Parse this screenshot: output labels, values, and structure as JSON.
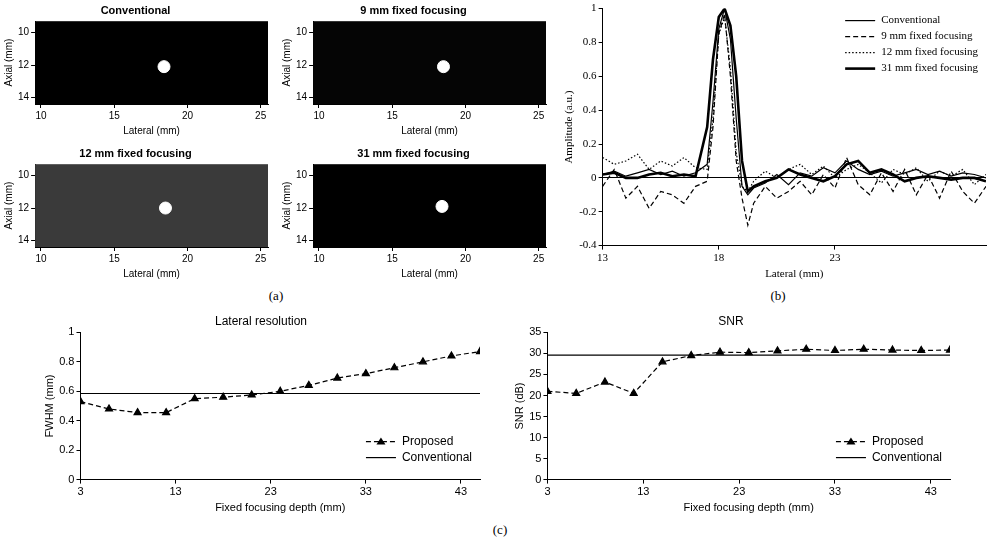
{
  "panel_labels": [
    "(a)",
    "(b)",
    "(c)"
  ],
  "chart_data": [
    {
      "type": "image",
      "title": "Conventional",
      "x_label": "Lateral (mm)",
      "y_label": "Axial (mm)",
      "xlim": [
        9.6,
        25.5
      ],
      "ylim": [
        14.4,
        9.3
      ],
      "xticks": [
        10,
        15,
        20,
        25
      ],
      "yticks": [
        10,
        12,
        14
      ],
      "spot": {
        "x": 18.4,
        "y": 12.1
      },
      "color": "#ffffff"
    },
    {
      "type": "image",
      "title": "9 mm fixed focusing",
      "x_label": "Lateral (mm)",
      "y_label": "Axial (mm)",
      "xlim": [
        9.6,
        25.5
      ],
      "ylim": [
        14.4,
        9.3
      ],
      "xticks": [
        10,
        15,
        20,
        25
      ],
      "yticks": [
        10,
        12,
        14
      ],
      "spot": {
        "x": 18.5,
        "y": 12.1
      },
      "color": "#ffffff"
    },
    {
      "type": "image",
      "title": "12 mm fixed focusing",
      "x_label": "Lateral (mm)",
      "y_label": "Axial (mm)",
      "xlim": [
        9.6,
        25.5
      ],
      "ylim": [
        14.4,
        9.3
      ],
      "xticks": [
        10,
        15,
        20,
        25
      ],
      "yticks": [
        10,
        12,
        14
      ],
      "spot": {
        "x": 18.5,
        "y": 12.0
      },
      "color": "#ffffff"
    },
    {
      "type": "image",
      "title": "31 mm fixed focusing",
      "x_label": "Lateral (mm)",
      "y_label": "Axial (mm)",
      "xlim": [
        9.6,
        25.5
      ],
      "ylim": [
        14.4,
        9.3
      ],
      "xticks": [
        10,
        15,
        20,
        25
      ],
      "yticks": [
        10,
        12,
        14
      ],
      "spot": {
        "x": 18.4,
        "y": 11.9
      },
      "color": "#ffffff"
    },
    {
      "type": "line",
      "x_label": "Lateral (mm)",
      "y_label": "Amplitude (a.u.)",
      "xlim": [
        13,
        29.5
      ],
      "ylim": [
        -0.4,
        1
      ],
      "xticks": [
        13,
        18,
        23
      ],
      "yticks": [
        -0.4,
        -0.2,
        0,
        0.2,
        0.4,
        0.6,
        0.8,
        1
      ],
      "legend": "top right",
      "x": [
        13,
        13.5,
        14,
        14.5,
        15,
        15.5,
        16,
        16.5,
        17,
        17.5,
        17.75,
        18,
        18.25,
        18.5,
        18.75,
        19,
        19.25,
        19.5,
        20,
        20.5,
        21,
        21.5,
        22,
        22.5,
        23,
        23.5,
        24,
        24.5,
        25,
        25.5,
        26,
        26.5,
        27,
        27.5,
        28,
        28.5,
        29,
        29.5
      ],
      "series": [
        {
          "name": "Conventional",
          "color": "#000000",
          "line_style": "solid",
          "marker": "none",
          "values": [
            0.02,
            0.04,
            0.01,
            0.03,
            0.05,
            0.02,
            0.04,
            0.01,
            0.03,
            0.08,
            0.45,
            0.88,
            1.0,
            0.82,
            0.35,
            -0.05,
            -0.1,
            -0.06,
            -0.03,
            0.02,
            -0.04,
            0.03,
            0.01,
            0.06,
            0.03,
            0.1,
            0.05,
            0.02,
            0.04,
            0.01,
            0.03,
            0.05,
            0.02,
            0.04,
            0.01,
            0.03,
            0.02,
            0.0
          ]
        },
        {
          "name": "9 mm fixed focusing",
          "color": "#000000",
          "line_style": "dashed",
          "marker": "none",
          "values": [
            -0.05,
            0.05,
            -0.12,
            -0.05,
            -0.18,
            -0.08,
            -0.1,
            -0.15,
            -0.05,
            -0.02,
            0.3,
            0.85,
            0.97,
            0.6,
            0.1,
            -0.12,
            -0.28,
            -0.15,
            -0.05,
            -0.12,
            -0.08,
            -0.02,
            -0.1,
            0.02,
            -0.06,
            0.12,
            -0.04,
            -0.1,
            0.03,
            -0.08,
            0.05,
            -0.1,
            0.02,
            -0.12,
            0.04,
            -0.08,
            -0.15,
            -0.05
          ]
        },
        {
          "name": "12 mm fixed focusing",
          "color": "#000000",
          "line_style": "dotted",
          "marker": "none",
          "values": [
            0.12,
            0.08,
            0.1,
            0.14,
            0.05,
            0.1,
            0.07,
            0.12,
            0.06,
            0.05,
            0.35,
            0.85,
            0.95,
            0.65,
            0.15,
            -0.05,
            -0.08,
            -0.02,
            0.04,
            0.0,
            0.05,
            0.08,
            0.02,
            0.07,
            0.0,
            0.05,
            0.08,
            0.03,
            -0.03,
            0.05,
            0.02,
            0.06,
            -0.02,
            0.04,
            0.01,
            0.05,
            -0.04,
            0.02
          ]
        },
        {
          "name": "31 mm fixed focusing",
          "color": "#000000",
          "line_style": "thick",
          "marker": "none",
          "values": [
            0.02,
            0.03,
            0.0,
            0.0,
            0.02,
            0.03,
            0.01,
            0.02,
            0.01,
            0.3,
            0.7,
            0.95,
            1.0,
            0.9,
            0.6,
            0.1,
            -0.08,
            -0.05,
            -0.02,
            0.0,
            0.05,
            0.02,
            0.0,
            -0.02,
            0.01,
            0.08,
            0.1,
            0.03,
            0.05,
            0.02,
            -0.02,
            0.0,
            0.01,
            0.0,
            -0.01,
            0.0,
            0.0,
            -0.02
          ]
        }
      ]
    },
    {
      "type": "line",
      "title": "Lateral resolution",
      "x_label": "Fixed focusing depth (mm)",
      "y_label": "FWHM (mm)",
      "xlim": [
        3,
        45
      ],
      "ylim": [
        0,
        1
      ],
      "xticks": [
        3,
        13,
        23,
        33,
        43
      ],
      "yticks": [
        0,
        0.2,
        0.4,
        0.6,
        0.8,
        1
      ],
      "legend": "bottom right",
      "x": [
        3,
        6,
        9,
        12,
        15,
        18,
        21,
        24,
        27,
        30,
        33,
        36,
        39,
        42,
        45
      ],
      "series": [
        {
          "name": "Proposed",
          "color": "#000000",
          "line_style": "dashed",
          "marker": "triangle",
          "values": [
            0.53,
            0.48,
            0.455,
            0.455,
            0.55,
            0.56,
            0.575,
            0.6,
            0.64,
            0.69,
            0.72,
            0.76,
            0.8,
            0.84,
            0.87
          ]
        },
        {
          "name": "Conventional",
          "color": "#000000",
          "line_style": "solid",
          "marker": "none",
          "values": [
            0.585,
            0.585,
            0.585,
            0.585,
            0.585,
            0.585,
            0.585,
            0.585,
            0.585,
            0.585,
            0.585,
            0.585,
            0.585,
            0.585,
            0.585
          ]
        }
      ]
    },
    {
      "type": "line",
      "title": "SNR",
      "x_label": "Fixed focusing depth (mm)",
      "y_label": "SNR (dB)",
      "xlim": [
        3,
        45
      ],
      "ylim": [
        0,
        35
      ],
      "xticks": [
        3,
        13,
        23,
        33,
        43
      ],
      "yticks": [
        0,
        5,
        10,
        15,
        20,
        25,
        30,
        35
      ],
      "legend": "bottom right",
      "x": [
        3,
        6,
        9,
        12,
        15,
        18,
        21,
        24,
        27,
        30,
        33,
        36,
        39,
        42,
        45
      ],
      "series": [
        {
          "name": "Proposed",
          "color": "#000000",
          "line_style": "dashed",
          "marker": "triangle",
          "values": [
            21,
            20.5,
            23.2,
            20.5,
            28,
            29.5,
            30.3,
            30.2,
            30.6,
            31,
            30.7,
            31,
            30.8,
            30.7,
            30.8
          ]
        },
        {
          "name": "Conventional",
          "color": "#000000",
          "line_style": "solid",
          "marker": "none",
          "values": [
            29.6,
            29.6,
            29.6,
            29.6,
            29.6,
            29.6,
            29.6,
            29.6,
            29.6,
            29.6,
            29.6,
            29.6,
            29.6,
            29.6,
            29.6
          ]
        }
      ]
    }
  ]
}
